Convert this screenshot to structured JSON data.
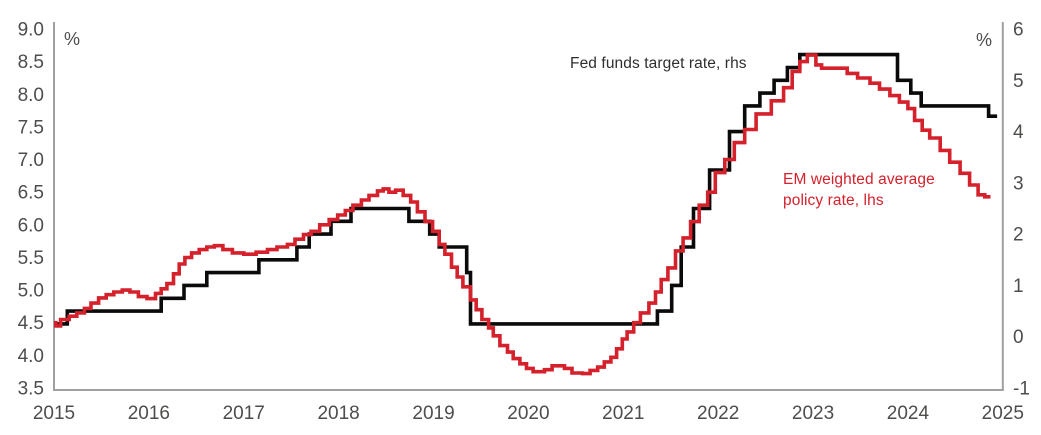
{
  "chart_data": {
    "type": "line",
    "title": "",
    "legend_position": "inline-annotations",
    "grid": false,
    "legend": [
      {
        "label": "Fed funds target rate, rhs",
        "color": "#0a0a0a",
        "axis": "right"
      },
      {
        "label": "EM weighted average policy rate, lhs",
        "color": "#d4212b",
        "axis": "left"
      }
    ],
    "left_axis": {
      "unit": "%",
      "min": 3.5,
      "max": 9.0,
      "ticks": [
        "9.0",
        "8.5",
        "8.0",
        "7.5",
        "7.0",
        "6.5",
        "6.0",
        "5.5",
        "5.0",
        "4.5",
        "4.0",
        "3.5"
      ]
    },
    "right_axis": {
      "unit": "%",
      "min": -1,
      "max": 6,
      "ticks": [
        "6",
        "5",
        "4",
        "3",
        "2",
        "1",
        "0",
        "-1"
      ]
    },
    "x_axis": {
      "ticks": [
        "2015",
        "2016",
        "2017",
        "2018",
        "2019",
        "2020",
        "2021",
        "2022",
        "2023",
        "2024",
        "2025"
      ],
      "min": 2015,
      "max": 2025
    },
    "series": [
      {
        "name": "Fed funds target rate",
        "axis": "right",
        "color": "#0a0a0a",
        "style": "step",
        "points": [
          [
            2015.0,
            0.25
          ],
          [
            2015.14,
            0.5
          ],
          [
            2016.13,
            0.75
          ],
          [
            2016.37,
            1.0
          ],
          [
            2016.61,
            1.25
          ],
          [
            2017.16,
            1.5
          ],
          [
            2017.56,
            1.75
          ],
          [
            2017.69,
            2.0
          ],
          [
            2017.92,
            2.25
          ],
          [
            2018.13,
            2.5
          ],
          [
            2018.74,
            2.25
          ],
          [
            2018.96,
            2.0
          ],
          [
            2019.06,
            1.75
          ],
          [
            2019.35,
            1.25
          ],
          [
            2019.39,
            0.25
          ],
          [
            2021.36,
            0.5
          ],
          [
            2021.51,
            1.0
          ],
          [
            2021.61,
            1.75
          ],
          [
            2021.74,
            2.5
          ],
          [
            2021.91,
            3.25
          ],
          [
            2022.12,
            4.0
          ],
          [
            2022.28,
            4.5
          ],
          [
            2022.44,
            4.75
          ],
          [
            2022.59,
            5.0
          ],
          [
            2022.73,
            5.25
          ],
          [
            2022.86,
            5.5
          ],
          [
            2023.89,
            5.0
          ],
          [
            2024.03,
            4.75
          ],
          [
            2024.14,
            4.5
          ],
          [
            2024.85,
            4.3
          ],
          [
            2024.94,
            4.3
          ]
        ]
      },
      {
        "name": "EM weighted average policy rate",
        "axis": "left",
        "color": "#d4212b",
        "style": "step",
        "points": [
          [
            2015.0,
            4.5
          ],
          [
            2015.02,
            4.45
          ],
          [
            2015.07,
            4.55
          ],
          [
            2015.16,
            4.6
          ],
          [
            2015.24,
            4.65
          ],
          [
            2015.32,
            4.72
          ],
          [
            2015.39,
            4.8
          ],
          [
            2015.47,
            4.88
          ],
          [
            2015.55,
            4.93
          ],
          [
            2015.63,
            4.97
          ],
          [
            2015.72,
            5.0
          ],
          [
            2015.8,
            4.97
          ],
          [
            2015.89,
            4.9
          ],
          [
            2015.98,
            4.87
          ],
          [
            2016.07,
            4.95
          ],
          [
            2016.13,
            5.02
          ],
          [
            2016.19,
            5.1
          ],
          [
            2016.26,
            5.25
          ],
          [
            2016.32,
            5.4
          ],
          [
            2016.38,
            5.5
          ],
          [
            2016.45,
            5.57
          ],
          [
            2016.53,
            5.62
          ],
          [
            2016.61,
            5.66
          ],
          [
            2016.69,
            5.68
          ],
          [
            2016.78,
            5.62
          ],
          [
            2016.88,
            5.57
          ],
          [
            2017.0,
            5.55
          ],
          [
            2017.13,
            5.58
          ],
          [
            2017.25,
            5.62
          ],
          [
            2017.35,
            5.66
          ],
          [
            2017.46,
            5.7
          ],
          [
            2017.54,
            5.78
          ],
          [
            2017.63,
            5.85
          ],
          [
            2017.71,
            5.9
          ],
          [
            2017.8,
            6.0
          ],
          [
            2017.9,
            6.08
          ],
          [
            2017.99,
            6.15
          ],
          [
            2018.07,
            6.22
          ],
          [
            2018.15,
            6.3
          ],
          [
            2018.24,
            6.38
          ],
          [
            2018.32,
            6.45
          ],
          [
            2018.41,
            6.52
          ],
          [
            2018.47,
            6.55
          ],
          [
            2018.53,
            6.5
          ],
          [
            2018.6,
            6.53
          ],
          [
            2018.68,
            6.45
          ],
          [
            2018.76,
            6.35
          ],
          [
            2018.83,
            6.2
          ],
          [
            2018.91,
            6.05
          ],
          [
            2018.99,
            5.9
          ],
          [
            2019.06,
            5.7
          ],
          [
            2019.12,
            5.55
          ],
          [
            2019.19,
            5.35
          ],
          [
            2019.25,
            5.2
          ],
          [
            2019.31,
            5.05
          ],
          [
            2019.39,
            4.85
          ],
          [
            2019.45,
            4.7
          ],
          [
            2019.51,
            4.55
          ],
          [
            2019.58,
            4.42
          ],
          [
            2019.63,
            4.3
          ],
          [
            2019.7,
            4.15
          ],
          [
            2019.78,
            4.05
          ],
          [
            2019.84,
            3.95
          ],
          [
            2019.91,
            3.87
          ],
          [
            2019.98,
            3.8
          ],
          [
            2020.05,
            3.75
          ],
          [
            2020.17,
            3.78
          ],
          [
            2020.25,
            3.84
          ],
          [
            2020.38,
            3.8
          ],
          [
            2020.46,
            3.73
          ],
          [
            2020.57,
            3.72
          ],
          [
            2020.65,
            3.77
          ],
          [
            2020.73,
            3.82
          ],
          [
            2020.8,
            3.9
          ],
          [
            2020.87,
            3.97
          ],
          [
            2020.93,
            4.1
          ],
          [
            2020.99,
            4.25
          ],
          [
            2021.04,
            4.36
          ],
          [
            2021.11,
            4.5
          ],
          [
            2021.18,
            4.65
          ],
          [
            2021.27,
            4.8
          ],
          [
            2021.34,
            4.97
          ],
          [
            2021.4,
            5.16
          ],
          [
            2021.47,
            5.34
          ],
          [
            2021.55,
            5.6
          ],
          [
            2021.63,
            5.8
          ],
          [
            2021.71,
            6.05
          ],
          [
            2021.8,
            6.3
          ],
          [
            2021.89,
            6.5
          ],
          [
            2021.97,
            6.8
          ],
          [
            2022.07,
            7.0
          ],
          [
            2022.17,
            7.26
          ],
          [
            2022.28,
            7.46
          ],
          [
            2022.4,
            7.7
          ],
          [
            2022.56,
            7.9
          ],
          [
            2022.69,
            8.1
          ],
          [
            2022.78,
            8.35
          ],
          [
            2022.86,
            8.5
          ],
          [
            2022.94,
            8.6
          ],
          [
            2023.03,
            8.45
          ],
          [
            2023.09,
            8.4
          ],
          [
            2023.36,
            8.32
          ],
          [
            2023.47,
            8.25
          ],
          [
            2023.6,
            8.17
          ],
          [
            2023.7,
            8.08
          ],
          [
            2023.81,
            7.98
          ],
          [
            2023.91,
            7.88
          ],
          [
            2024.0,
            7.78
          ],
          [
            2024.07,
            7.6
          ],
          [
            2024.15,
            7.45
          ],
          [
            2024.23,
            7.33
          ],
          [
            2024.34,
            7.14
          ],
          [
            2024.44,
            6.96
          ],
          [
            2024.55,
            6.79
          ],
          [
            2024.65,
            6.61
          ],
          [
            2024.74,
            6.46
          ],
          [
            2024.81,
            6.43
          ],
          [
            2024.87,
            6.43
          ]
        ]
      }
    ]
  },
  "labels": {
    "fed_legend": "Fed funds target rate, rhs",
    "em_legend": "EM weighted average policy rate, lhs",
    "pct_left": "%",
    "pct_right": "%"
  },
  "colors": {
    "fed_line": "#0a0a0a",
    "em_line": "#d4212b",
    "axis_line": "#a0a09e",
    "tick_text": "#4d4d4b"
  }
}
